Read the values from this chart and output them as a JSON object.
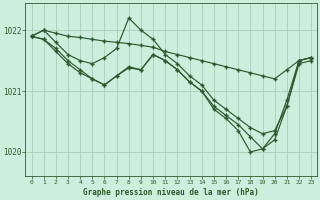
{
  "title": "Graphe pression niveau de la mer (hPa)",
  "background_color": "#cceedd",
  "grid_color": "#aaccbb",
  "line_color": "#2d5a2d",
  "xlim": [
    -0.5,
    23.5
  ],
  "ylim": [
    1019.6,
    1022.45
  ],
  "yticks": [
    1020,
    1021,
    1022
  ],
  "xticks": [
    0,
    1,
    2,
    3,
    4,
    5,
    6,
    7,
    8,
    9,
    10,
    11,
    12,
    13,
    14,
    15,
    16,
    17,
    18,
    19,
    20,
    21,
    22,
    23
  ],
  "series": [
    {
      "x": [
        0,
        1,
        2,
        3,
        4,
        5,
        6,
        7,
        8,
        9,
        10,
        11,
        12,
        13,
        14,
        15,
        16,
        17,
        18,
        19,
        20,
        21,
        22,
        23
      ],
      "y": [
        1021.9,
        1022.0,
        1021.95,
        1021.9,
        1021.88,
        1021.85,
        1021.82,
        1021.8,
        1021.78,
        1021.75,
        1021.72,
        1021.65,
        1021.6,
        1021.55,
        1021.5,
        1021.45,
        1021.4,
        1021.35,
        1021.3,
        1021.25,
        1021.2,
        1021.35,
        1021.5,
        1021.55
      ]
    },
    {
      "x": [
        0,
        1,
        2,
        3,
        4,
        5,
        6,
        7,
        8,
        9,
        10,
        11,
        12,
        13,
        14,
        15,
        16,
        17,
        18,
        19,
        20,
        21,
        22,
        23
      ],
      "y": [
        1021.9,
        1022.0,
        1021.8,
        1021.6,
        1021.5,
        1021.45,
        1021.55,
        1021.7,
        1022.2,
        1022.0,
        1021.85,
        1021.6,
        1021.45,
        1021.25,
        1021.1,
        1020.85,
        1020.7,
        1020.55,
        1020.4,
        1020.3,
        1020.35,
        1020.75,
        1021.5,
        1021.55
      ]
    },
    {
      "x": [
        0,
        1,
        2,
        3,
        4,
        5,
        6,
        7,
        8,
        9,
        10,
        11,
        12,
        13,
        14,
        15,
        16,
        17,
        18,
        19,
        20,
        21,
        22,
        23
      ],
      "y": [
        1021.9,
        1021.85,
        1021.65,
        1021.45,
        1021.3,
        1021.2,
        1021.1,
        1021.25,
        1021.4,
        1021.35,
        1021.6,
        1021.5,
        1021.35,
        1021.15,
        1021.0,
        1020.75,
        1020.6,
        1020.45,
        1020.25,
        1020.05,
        1020.2,
        1020.75,
        1021.45,
        1021.5
      ]
    },
    {
      "x": [
        0,
        1,
        2,
        3,
        4,
        5,
        6,
        7,
        8,
        9,
        10,
        11,
        12,
        13,
        14,
        15,
        16,
        17,
        18,
        19,
        20,
        21,
        22,
        23
      ],
      "y": [
        1021.9,
        1021.85,
        1021.7,
        1021.5,
        1021.35,
        1021.2,
        1021.1,
        1021.25,
        1021.38,
        1021.35,
        1021.6,
        1021.5,
        1021.35,
        1021.15,
        1021.0,
        1020.7,
        1020.55,
        1020.35,
        1020.0,
        1020.05,
        1020.3,
        1020.85,
        1021.5,
        1021.55
      ]
    }
  ]
}
